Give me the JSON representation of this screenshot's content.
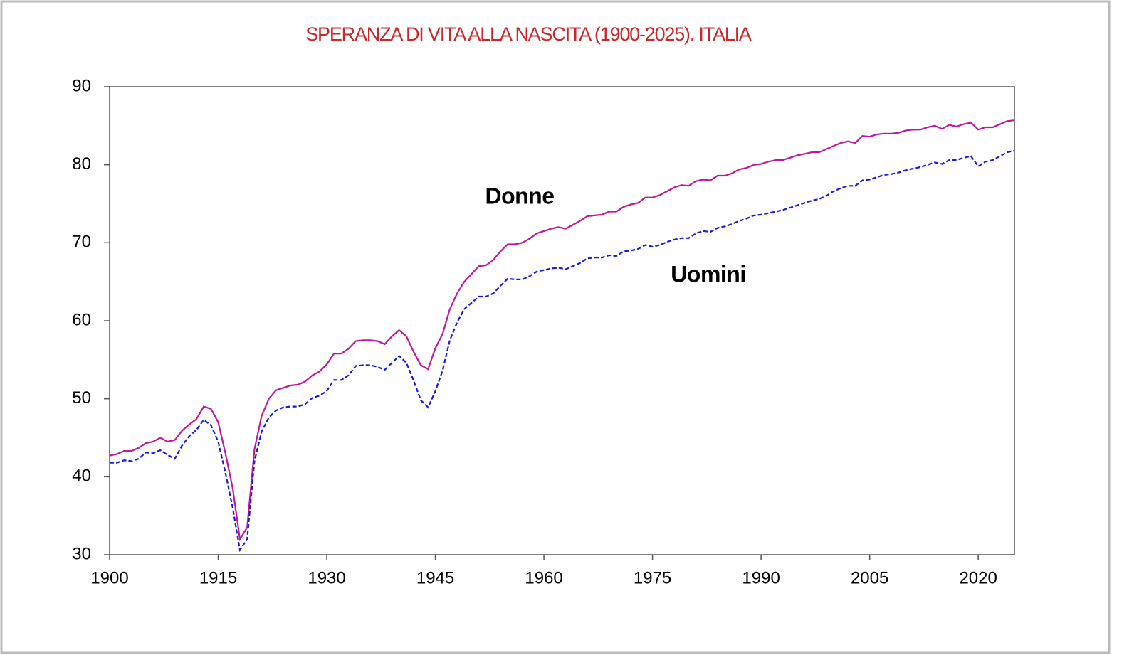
{
  "chart_data": {
    "type": "line",
    "title": "SPERANZA DI VITA ALLA NASCITA (1900-2025). ITALIA",
    "x": [
      1900,
      1901,
      1902,
      1903,
      1904,
      1905,
      1906,
      1907,
      1908,
      1909,
      1910,
      1911,
      1912,
      1913,
      1914,
      1915,
      1916,
      1917,
      1918,
      1919,
      1920,
      1921,
      1922,
      1923,
      1924,
      1925,
      1926,
      1927,
      1928,
      1929,
      1930,
      1931,
      1932,
      1933,
      1934,
      1935,
      1936,
      1937,
      1938,
      1939,
      1940,
      1941,
      1942,
      1943,
      1944,
      1945,
      1946,
      1947,
      1948,
      1949,
      1950,
      1951,
      1952,
      1953,
      1954,
      1955,
      1956,
      1957,
      1958,
      1959,
      1960,
      1961,
      1962,
      1963,
      1964,
      1965,
      1966,
      1967,
      1968,
      1969,
      1970,
      1971,
      1972,
      1973,
      1974,
      1975,
      1976,
      1977,
      1978,
      1979,
      1980,
      1981,
      1982,
      1983,
      1984,
      1985,
      1986,
      1987,
      1988,
      1989,
      1990,
      1991,
      1992,
      1993,
      1994,
      1995,
      1996,
      1997,
      1998,
      1999,
      2000,
      2001,
      2002,
      2003,
      2004,
      2005,
      2006,
      2007,
      2008,
      2009,
      2010,
      2011,
      2012,
      2013,
      2014,
      2015,
      2016,
      2017,
      2018,
      2019,
      2020,
      2021,
      2022,
      2023,
      2024,
      2025
    ],
    "series": [
      {
        "name": "Donne",
        "color": "#c0189a",
        "line_style": "solid",
        "values": [
          42.7,
          42.9,
          43.3,
          43.3,
          43.7,
          44.3,
          44.5,
          45.0,
          44.5,
          44.7,
          45.9,
          46.7,
          47.4,
          49.0,
          48.7,
          47.0,
          43.0,
          38.5,
          32.0,
          33.5,
          43.5,
          47.8,
          50.0,
          51.1,
          51.4,
          51.7,
          51.8,
          52.2,
          53.0,
          53.5,
          54.4,
          55.8,
          55.8,
          56.4,
          57.4,
          57.5,
          57.5,
          57.4,
          57.0,
          58.0,
          58.8,
          58.0,
          56.0,
          54.3,
          53.8,
          56.5,
          58.3,
          61.5,
          63.5,
          65.0,
          66.0,
          67.0,
          67.1,
          67.8,
          68.9,
          69.8,
          69.8,
          70.0,
          70.5,
          71.2,
          71.5,
          71.8,
          72.0,
          71.8,
          72.3,
          72.8,
          73.4,
          73.5,
          73.6,
          74.0,
          74.0,
          74.6,
          74.9,
          75.1,
          75.8,
          75.8,
          76.1,
          76.6,
          77.1,
          77.4,
          77.3,
          77.9,
          78.1,
          78.0,
          78.6,
          78.6,
          78.9,
          79.4,
          79.6,
          80.0,
          80.1,
          80.4,
          80.6,
          80.6,
          80.9,
          81.2,
          81.4,
          81.6,
          81.6,
          82.0,
          82.4,
          82.8,
          83.0,
          82.8,
          83.7,
          83.6,
          83.9,
          84.0,
          84.0,
          84.1,
          84.4,
          84.5,
          84.5,
          84.8,
          85.0,
          84.6,
          85.1,
          84.9,
          85.2,
          85.4,
          84.5,
          84.8,
          84.8,
          85.2,
          85.6,
          85.7
        ]
      },
      {
        "name": "Uomini",
        "color": "#1a1adc",
        "line_style": "dashed",
        "values": [
          41.8,
          41.8,
          42.1,
          42.0,
          42.3,
          43.1,
          43.0,
          43.4,
          42.8,
          42.3,
          44.0,
          45.2,
          46.0,
          47.3,
          46.6,
          44.5,
          40.5,
          36.0,
          30.6,
          32.0,
          42.0,
          45.8,
          47.6,
          48.5,
          48.9,
          49.0,
          49.0,
          49.3,
          50.1,
          50.4,
          51.0,
          52.4,
          52.4,
          53.0,
          54.2,
          54.3,
          54.3,
          54.1,
          53.7,
          54.6,
          55.5,
          54.6,
          52.3,
          49.8,
          48.9,
          51.0,
          53.6,
          57.5,
          59.8,
          61.5,
          62.3,
          63.1,
          63.1,
          63.5,
          64.5,
          65.4,
          65.3,
          65.3,
          65.7,
          66.3,
          66.5,
          66.7,
          66.8,
          66.6,
          67.0,
          67.4,
          68.0,
          68.1,
          68.1,
          68.4,
          68.3,
          68.9,
          69.0,
          69.2,
          69.7,
          69.5,
          69.7,
          70.1,
          70.4,
          70.6,
          70.6,
          71.2,
          71.5,
          71.4,
          71.9,
          72.1,
          72.4,
          72.8,
          73.1,
          73.5,
          73.6,
          73.8,
          74.0,
          74.2,
          74.5,
          74.8,
          75.1,
          75.4,
          75.6,
          76.0,
          76.6,
          77.0,
          77.3,
          77.3,
          78.0,
          78.1,
          78.4,
          78.7,
          78.8,
          79.0,
          79.3,
          79.5,
          79.7,
          80.0,
          80.3,
          80.1,
          80.6,
          80.6,
          80.9,
          81.1,
          79.8,
          80.4,
          80.6,
          81.1,
          81.6,
          81.8
        ]
      }
    ],
    "xlim": [
      1900,
      2025
    ],
    "xticks": [
      1900,
      1915,
      1930,
      1945,
      1960,
      1975,
      1990,
      2005,
      2020
    ],
    "ylim": [
      30,
      90
    ],
    "yticks": [
      30,
      40,
      50,
      60,
      70,
      80,
      90
    ],
    "grid": false
  }
}
